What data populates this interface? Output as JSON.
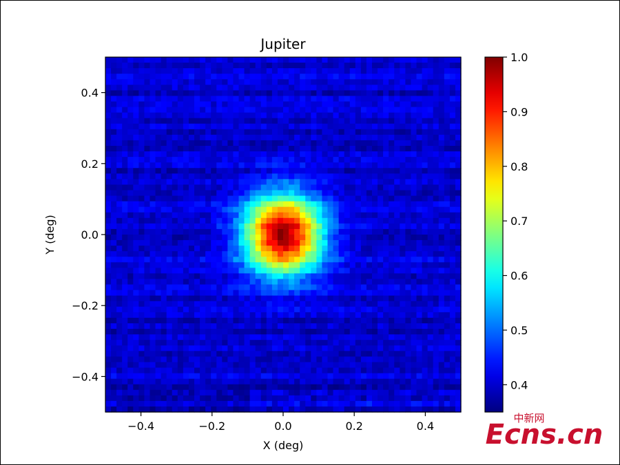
{
  "chart_data": {
    "type": "heatmap",
    "title": "Jupiter",
    "xlabel": "X (deg)",
    "ylabel": "Y (deg)",
    "xlim": [
      -0.5,
      0.5
    ],
    "ylim": [
      -0.5,
      0.5
    ],
    "x_ticks": [
      -0.4,
      -0.2,
      0.0,
      0.2,
      0.4
    ],
    "x_tick_labels": [
      "−0.4",
      "−0.2",
      "0.0",
      "0.2",
      "0.4"
    ],
    "y_ticks": [
      0.4,
      0.2,
      0.0,
      -0.2,
      -0.4
    ],
    "y_tick_labels": [
      "0.4",
      "0.2",
      "0.0",
      "−0.2",
      "−0.4"
    ],
    "colormap": "jet",
    "colorbar": {
      "min": 0.35,
      "max": 1.0,
      "ticks": [
        1.0,
        0.9,
        0.8,
        0.7,
        0.6,
        0.5,
        0.4
      ],
      "tick_labels": [
        "1.0",
        "0.9",
        "0.8",
        "0.7",
        "0.6",
        "0.5",
        "0.4"
      ]
    },
    "grid_cells": 64,
    "source": {
      "center": [
        0.0,
        0.0
      ],
      "peak": 1.0,
      "fwhm_deg": 0.18
    },
    "background_level": 0.4
  },
  "watermark": {
    "chinese": "中新网",
    "main": "Ecns.cn",
    "color": "#c8102e"
  }
}
